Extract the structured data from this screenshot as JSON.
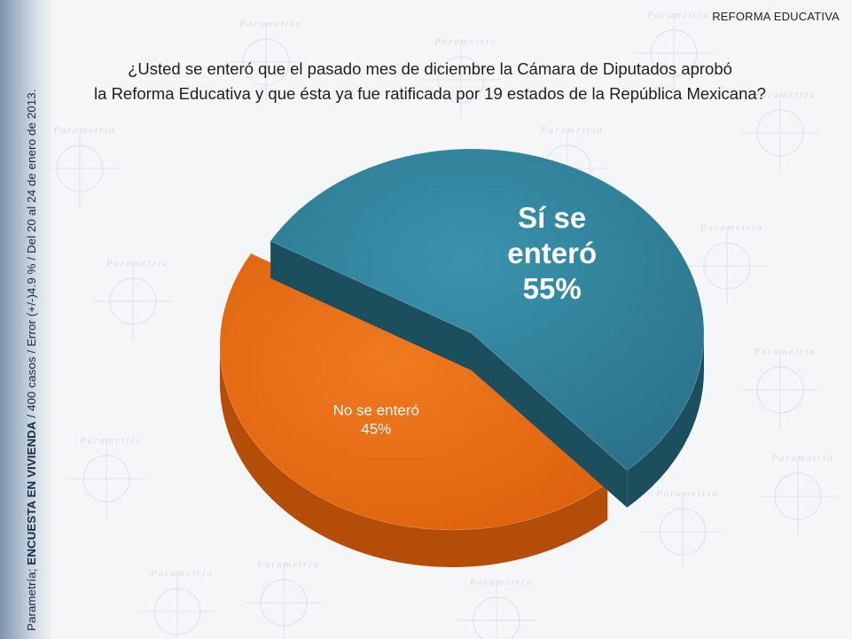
{
  "header": {
    "section_label": "REFORMA EDUCATIVA",
    "question_line1": "¿Usted se enteró que el pasado mes de diciembre la Cámara de Diputados aprobó",
    "question_line2": "la Reforma Educativa y que ésta ya fue ratificada por 19 estados de la República Mexicana?"
  },
  "side_note": {
    "prefix": "Parametría; ",
    "bold": "ENCUESTA EN VIVIENDA",
    "suffix": " / 400 casos / Error (+/-)4.9 % / Del 20 al 24 de enero de 2013."
  },
  "watermark": {
    "word": "Parametría"
  },
  "colors": {
    "si_top": "#2f7f97",
    "si_side": "#1c4f5e",
    "no_top": "#e86a12",
    "no_side": "#b34d08"
  },
  "chart_data": {
    "type": "pie",
    "title": "¿Usted se enteró que el pasado mes de diciembre la Cámara de Diputados aprobó la Reforma Educativa y que ésta ya fue ratificada por 19 estados de la República Mexicana?",
    "slices": [
      {
        "label": "Sí se enteró",
        "value": 55,
        "display": [
          "Sí se",
          "enteró",
          "55%"
        ],
        "color": "#2f7f97",
        "exploded": true
      },
      {
        "label": "No se enteró",
        "value": 45,
        "display": [
          "No se enteró",
          "45%"
        ],
        "color": "#e86a12",
        "exploded": false
      }
    ]
  }
}
